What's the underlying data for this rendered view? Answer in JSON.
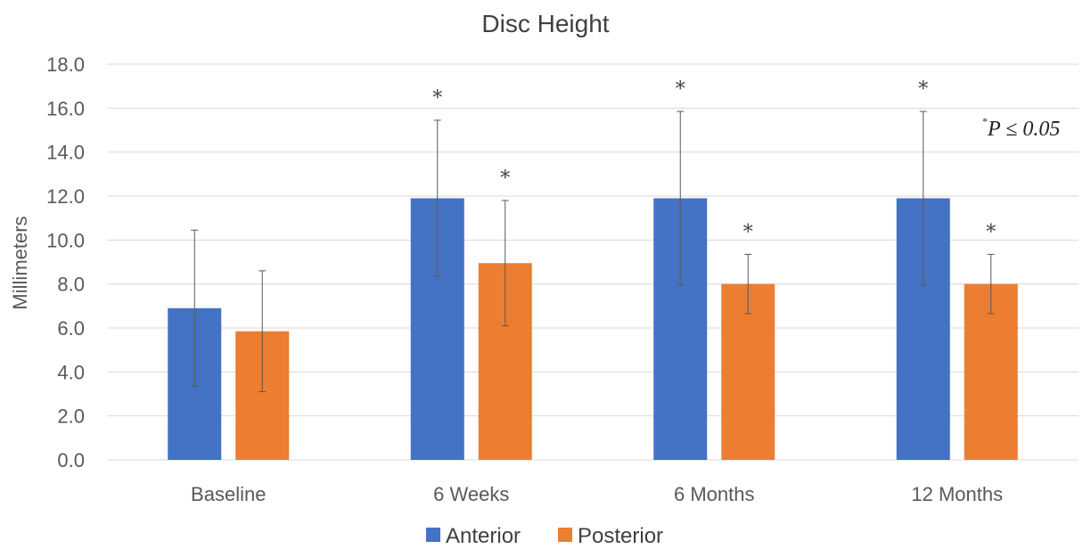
{
  "chart_data": {
    "type": "bar",
    "title": "Disc Height",
    "xlabel": "",
    "ylabel": "Millimeters",
    "ylim": [
      0,
      18
    ],
    "yticks": [
      "0.0",
      "2.0",
      "4.0",
      "6.0",
      "8.0",
      "10.0",
      "12.0",
      "14.0",
      "16.0",
      "18.0"
    ],
    "grid": true,
    "legend_position": "bottom",
    "categories": [
      "Baseline",
      "6 Weeks",
      "6 Months",
      "12 Months"
    ],
    "series": [
      {
        "name": "Anterior",
        "color": "#4472C4",
        "values": [
          6.9,
          11.9,
          11.9,
          11.9
        ],
        "error": [
          3.55,
          3.55,
          3.95,
          3.95
        ],
        "significance": [
          "",
          "*",
          "*",
          "*"
        ]
      },
      {
        "name": "Posterior",
        "color": "#ED7D31",
        "values": [
          5.85,
          8.95,
          8.0,
          8.0
        ],
        "error": [
          2.75,
          2.85,
          1.35,
          1.35
        ],
        "significance": [
          "",
          "*",
          "*",
          "*"
        ]
      }
    ],
    "annotation": {
      "prefix": "*",
      "text": "P ≤ 0.05"
    }
  }
}
